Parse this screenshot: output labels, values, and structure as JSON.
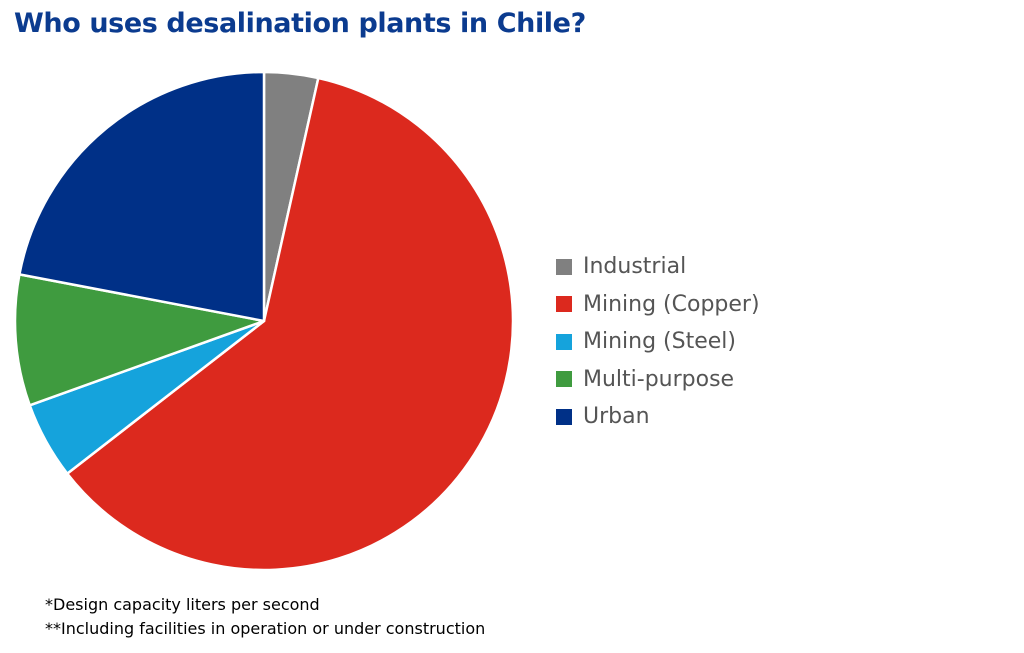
{
  "chart_data": {
    "type": "pie",
    "title": "Who uses desalination plants in Chile?",
    "categories": [
      "Industrial",
      "Mining (Copper)",
      "Mining (Steel)",
      "Multi-purpose",
      "Urban"
    ],
    "values": [
      3.5,
      61.0,
      5.0,
      8.5,
      22.0
    ],
    "unit": "%",
    "colors": [
      "#808080",
      "#dc291e",
      "#15a3dc",
      "#3f9b3f",
      "#003087"
    ],
    "start_angle_deg": 0,
    "direction": "clockwise",
    "legend_position": "right",
    "notes": [
      "*Design capacity liters per second",
      "**Including facilities in operation or under construction"
    ]
  }
}
